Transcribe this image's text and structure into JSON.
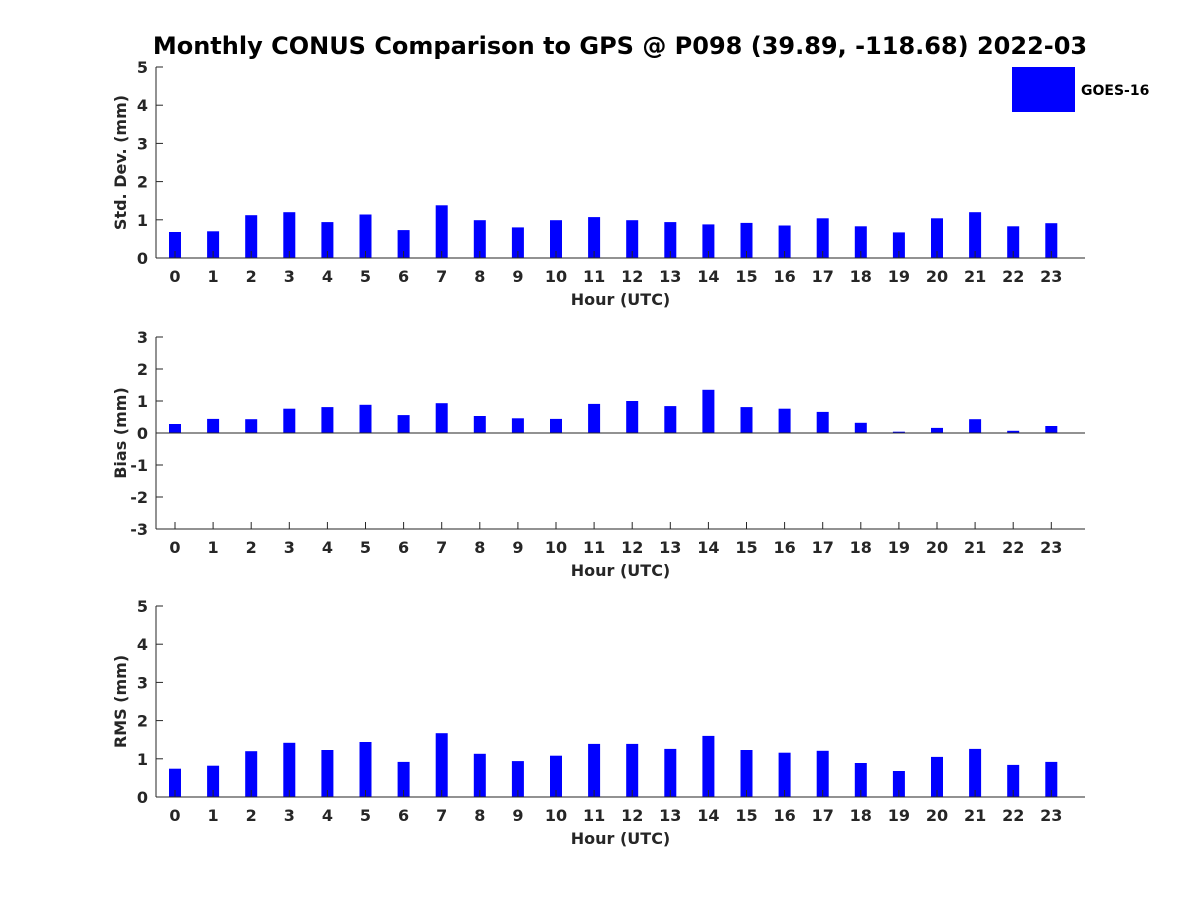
{
  "title": "Monthly CONUS Comparison to GPS @ P098 (39.89, -118.68) 2022-03",
  "legend": {
    "label": "GOES-16",
    "color": "#0000ff"
  },
  "chart_data": [
    {
      "type": "bar",
      "xlabel": "Hour (UTC)",
      "ylabel": "Std. Dev. (mm)",
      "ylim": [
        0,
        5
      ],
      "yticks": [
        0,
        1,
        2,
        3,
        4,
        5
      ],
      "categories": [
        "0",
        "1",
        "2",
        "3",
        "4",
        "5",
        "6",
        "7",
        "8",
        "9",
        "10",
        "11",
        "12",
        "13",
        "14",
        "15",
        "16",
        "17",
        "18",
        "19",
        "20",
        "21",
        "22",
        "23"
      ],
      "series": [
        {
          "name": "GOES-16",
          "color": "#0000ff",
          "values": [
            0.68,
            0.7,
            1.12,
            1.2,
            0.94,
            1.14,
            0.73,
            1.38,
            0.99,
            0.8,
            0.99,
            1.07,
            0.99,
            0.94,
            0.88,
            0.92,
            0.85,
            1.04,
            0.83,
            0.67,
            1.04,
            1.2,
            0.83,
            0.91
          ]
        }
      ]
    },
    {
      "type": "bar",
      "xlabel": "Hour (UTC)",
      "ylabel": "Bias (mm)",
      "ylim": [
        -3,
        3
      ],
      "yticks": [
        -3,
        -2,
        -1,
        0,
        1,
        2,
        3
      ],
      "categories": [
        "0",
        "1",
        "2",
        "3",
        "4",
        "5",
        "6",
        "7",
        "8",
        "9",
        "10",
        "11",
        "12",
        "13",
        "14",
        "15",
        "16",
        "17",
        "18",
        "19",
        "20",
        "21",
        "22",
        "23"
      ],
      "series": [
        {
          "name": "GOES-16",
          "color": "#0000ff",
          "values": [
            0.28,
            0.44,
            0.43,
            0.76,
            0.81,
            0.88,
            0.56,
            0.93,
            0.53,
            0.46,
            0.44,
            0.91,
            1.0,
            0.84,
            1.35,
            0.81,
            0.76,
            0.66,
            0.32,
            0.04,
            0.16,
            0.43,
            0.07,
            0.22
          ]
        }
      ]
    },
    {
      "type": "bar",
      "xlabel": "Hour (UTC)",
      "ylabel": "RMS (mm)",
      "ylim": [
        0,
        5
      ],
      "yticks": [
        0,
        1,
        2,
        3,
        4,
        5
      ],
      "categories": [
        "0",
        "1",
        "2",
        "3",
        "4",
        "5",
        "6",
        "7",
        "8",
        "9",
        "10",
        "11",
        "12",
        "13",
        "14",
        "15",
        "16",
        "17",
        "18",
        "19",
        "20",
        "21",
        "22",
        "23"
      ],
      "series": [
        {
          "name": "GOES-16",
          "color": "#0000ff",
          "values": [
            0.74,
            0.82,
            1.2,
            1.42,
            1.23,
            1.44,
            0.92,
            1.67,
            1.13,
            0.94,
            1.08,
            1.39,
            1.39,
            1.26,
            1.6,
            1.23,
            1.16,
            1.21,
            0.89,
            0.68,
            1.05,
            1.26,
            0.84,
            0.92
          ]
        }
      ]
    }
  ]
}
